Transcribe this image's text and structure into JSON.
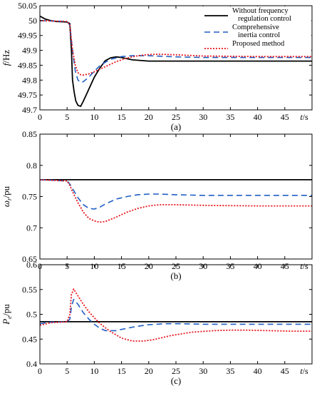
{
  "colors": {
    "without_control": "#000000",
    "comprehensive_inertia": "#1f5fc4",
    "proposed": "#e8141b"
  },
  "legend": {
    "placement": "top-right",
    "entries": [
      {
        "series": "without",
        "line1": "Without frequency",
        "line2": "regulation control"
      },
      {
        "series": "comprehensive",
        "line1": "Comprehensive",
        "line2": "inertia control"
      },
      {
        "series": "proposed",
        "line1": "Proposed method",
        "line2": ""
      }
    ]
  },
  "chart_data": [
    {
      "id": "a",
      "type": "line",
      "caption": "(a)",
      "ylabel_main": "f",
      "ylabel_sub": "",
      "ylabel_unit": "/Hz",
      "xlabel": "t/s",
      "xlim": [
        0,
        50
      ],
      "ylim": [
        49.7,
        50.05
      ],
      "xticks": [
        0,
        5,
        10,
        15,
        20,
        25,
        30,
        35,
        40,
        45
      ],
      "yticks": [
        "50.05",
        "50",
        "49.95",
        "49.9",
        "49.85",
        "49.8",
        "49.75",
        "49.7"
      ],
      "grid": false,
      "legend": true,
      "series": [
        {
          "name": "Without frequency regulation control",
          "key": "without",
          "style": "solid",
          "x": [
            0,
            1,
            2,
            3,
            4,
            5,
            5.5,
            5.8,
            6,
            6.3,
            6.6,
            7,
            7.5,
            8,
            9,
            10,
            11,
            12,
            13,
            14,
            15,
            17,
            20,
            25,
            30,
            40,
            50
          ],
          "y": [
            50.015,
            50.005,
            50.0,
            49.997,
            49.996,
            49.995,
            49.99,
            49.9,
            49.8,
            49.76,
            49.73,
            49.715,
            49.712,
            49.73,
            49.77,
            49.81,
            49.84,
            49.865,
            49.875,
            49.878,
            49.876,
            49.868,
            49.864,
            49.864,
            49.864,
            49.864,
            49.864
          ]
        },
        {
          "name": "Comprehensive inertia control",
          "key": "comprehensive",
          "style": "dashed",
          "x": [
            0,
            5,
            5.5,
            6,
            6.5,
            7,
            7.5,
            8,
            9,
            10,
            11,
            12,
            13,
            15,
            17,
            20,
            25,
            30,
            40,
            50
          ],
          "y": [
            50.0,
            49.997,
            49.985,
            49.9,
            49.83,
            49.8,
            49.792,
            49.795,
            49.81,
            49.83,
            49.848,
            49.86,
            49.87,
            49.879,
            49.882,
            49.882,
            49.878,
            49.876,
            49.876,
            49.876
          ]
        },
        {
          "name": "Proposed method",
          "key": "proposed",
          "style": "dotted",
          "x": [
            0,
            5,
            5.5,
            6,
            6.5,
            7,
            7.5,
            8,
            9,
            10,
            12,
            14,
            16,
            18,
            20,
            22,
            25,
            30,
            40,
            50
          ],
          "y": [
            50.0,
            49.997,
            49.985,
            49.9,
            49.85,
            49.825,
            49.818,
            49.817,
            49.821,
            49.828,
            49.845,
            49.862,
            49.874,
            49.882,
            49.886,
            49.887,
            49.885,
            49.881,
            49.879,
            49.879
          ]
        }
      ]
    },
    {
      "id": "b",
      "type": "line",
      "caption": "(b)",
      "ylabel_main": "ω",
      "ylabel_sub": "r",
      "ylabel_unit": "/pu",
      "xlabel": "t/s",
      "xlim": [
        0,
        50
      ],
      "ylim": [
        0.65,
        0.85
      ],
      "xticks": [
        0,
        5,
        10,
        15,
        20,
        25,
        30,
        35,
        40,
        45
      ],
      "yticks": [
        "0.85",
        "0.8",
        "0.75",
        "0.7",
        "0.65"
      ],
      "grid": false,
      "legend": false,
      "series": [
        {
          "name": "Without frequency regulation control",
          "key": "without",
          "style": "solid",
          "x": [
            0,
            50
          ],
          "y": [
            0.777,
            0.777
          ]
        },
        {
          "name": "Comprehensive inertia control",
          "key": "comprehensive",
          "style": "dashed",
          "x": [
            0,
            5,
            5.5,
            6,
            7,
            8,
            9,
            10,
            11,
            12,
            14,
            16,
            18,
            20,
            22,
            25,
            30,
            40,
            50
          ],
          "y": [
            0.777,
            0.775,
            0.77,
            0.763,
            0.748,
            0.737,
            0.731,
            0.73,
            0.733,
            0.738,
            0.746,
            0.75,
            0.753,
            0.754,
            0.754,
            0.753,
            0.752,
            0.752,
            0.752
          ]
        },
        {
          "name": "Proposed method",
          "key": "proposed",
          "style": "dotted",
          "x": [
            0,
            5,
            5.5,
            6,
            7,
            8,
            9,
            10,
            11,
            12,
            14,
            16,
            18,
            20,
            22,
            25,
            30,
            40,
            50
          ],
          "y": [
            0.777,
            0.775,
            0.768,
            0.758,
            0.74,
            0.725,
            0.715,
            0.711,
            0.709,
            0.71,
            0.717,
            0.725,
            0.731,
            0.735,
            0.737,
            0.737,
            0.736,
            0.735,
            0.735
          ]
        }
      ]
    },
    {
      "id": "c",
      "type": "line",
      "caption": "(c)",
      "ylabel_main": "P",
      "ylabel_sub": "e",
      "ylabel_unit": "/pu",
      "xlabel": "t/s",
      "xlim": [
        0,
        50
      ],
      "ylim": [
        0.4,
        0.6
      ],
      "xticks": [
        0,
        5,
        10,
        15,
        20,
        25,
        30,
        35,
        40,
        45
      ],
      "yticks": [
        "0.6",
        "0.55",
        "0.5",
        "0.45",
        "0.4"
      ],
      "grid": false,
      "legend": false,
      "series": [
        {
          "name": "Without frequency regulation control",
          "key": "without",
          "style": "solid",
          "x": [
            0,
            50
          ],
          "y": [
            0.485,
            0.485
          ]
        },
        {
          "name": "Comprehensive inertia control",
          "key": "comprehensive",
          "style": "dashed",
          "x": [
            0,
            2,
            5,
            5.5,
            5.8,
            6.2,
            7,
            8,
            9,
            10,
            11,
            12,
            14,
            16,
            18,
            20,
            23,
            26,
            30,
            40,
            50
          ],
          "y": [
            0.481,
            0.484,
            0.485,
            0.49,
            0.515,
            0.53,
            0.52,
            0.503,
            0.49,
            0.48,
            0.472,
            0.467,
            0.467,
            0.472,
            0.476,
            0.479,
            0.481,
            0.481,
            0.48,
            0.48,
            0.48
          ]
        },
        {
          "name": "Proposed method",
          "key": "proposed",
          "style": "dotted",
          "x": [
            0,
            2,
            5,
            5.5,
            5.8,
            6.2,
            7,
            8,
            9,
            10,
            11,
            12,
            13,
            15,
            17,
            19,
            21,
            24,
            28,
            32,
            35,
            38,
            42,
            46,
            50
          ],
          "y": [
            0.478,
            0.483,
            0.485,
            0.5,
            0.54,
            0.551,
            0.537,
            0.52,
            0.505,
            0.493,
            0.482,
            0.473,
            0.465,
            0.452,
            0.446,
            0.446,
            0.449,
            0.457,
            0.464,
            0.467,
            0.468,
            0.468,
            0.467,
            0.466,
            0.466
          ]
        }
      ]
    }
  ]
}
